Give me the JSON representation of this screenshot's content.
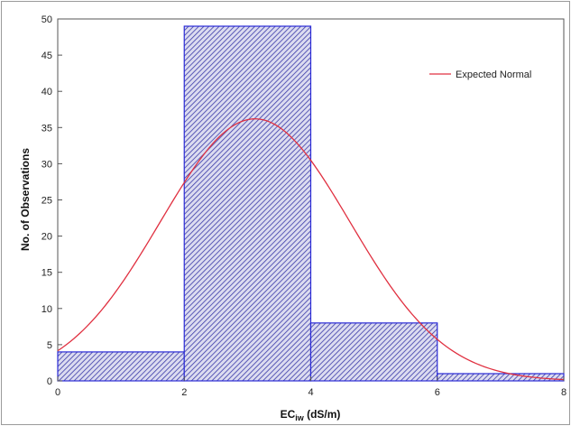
{
  "chart_data": {
    "type": "bar",
    "title": "",
    "xlabel": "EC",
    "xlabel_sub": "iw",
    "xlabel_unit": " (dS/m)",
    "ylabel": "No. of Observations",
    "bins": [
      {
        "x0": 0,
        "x1": 2,
        "value": 4
      },
      {
        "x0": 2,
        "x1": 4,
        "value": 49
      },
      {
        "x0": 4,
        "x1": 6,
        "value": 8
      },
      {
        "x0": 6,
        "x1": 8,
        "value": 1
      }
    ],
    "xlim": [
      0,
      8
    ],
    "ylim": [
      0,
      50
    ],
    "xticks": [
      0,
      2,
      4,
      6,
      8
    ],
    "yticks": [
      0,
      5,
      10,
      15,
      20,
      25,
      30,
      35,
      40,
      45,
      50
    ],
    "curve": {
      "name": "Expected Normal",
      "mean": 3.12,
      "peak": 36.2
    },
    "legend_position": "top-right",
    "grid": false,
    "colors": {
      "bar_fill": "#dcdcf0",
      "bar_hatch": "#3a3aa8",
      "bar_edge": "#2b2bd6",
      "curve": "#e03040"
    }
  }
}
